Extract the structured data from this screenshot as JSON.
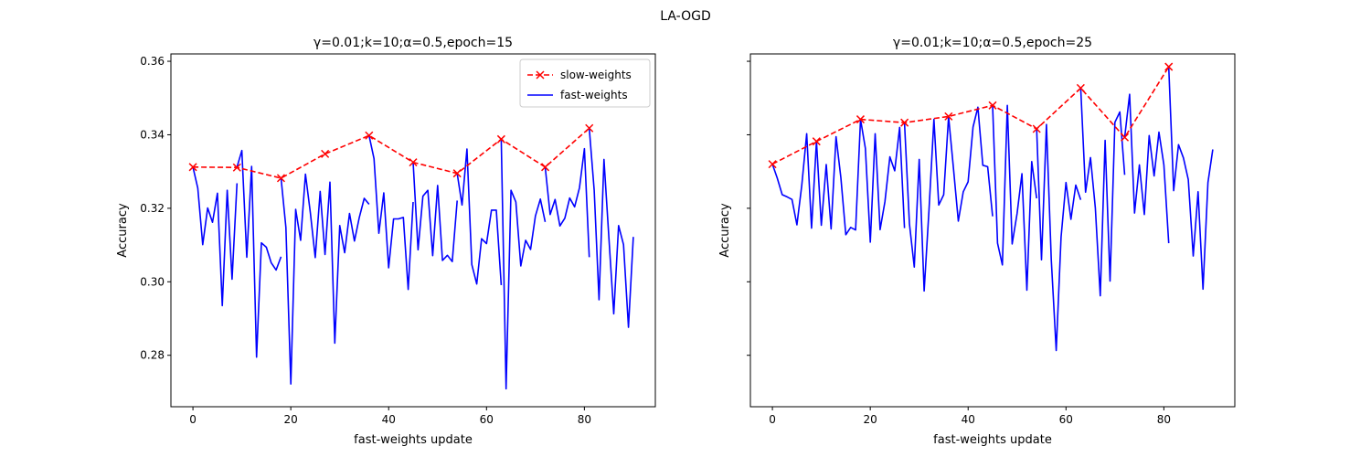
{
  "figure": {
    "suptitle": "LA-OGD"
  },
  "colors": {
    "slow": "#ff0000",
    "fast": "#0000ff",
    "axis": "#000000",
    "legend_border": "#cccccc"
  },
  "chart_data": [
    {
      "type": "line",
      "title": "γ=0.01;k=10;α=0.5,epoch=15",
      "xlabel": "fast-weights update",
      "ylabel": "Accuracy",
      "xlim": [
        -4.5,
        94.5
      ],
      "ylim": [
        0.266,
        0.362
      ],
      "xticks": [
        0,
        20,
        40,
        60,
        80
      ],
      "xtick_labels": [
        "0",
        "20",
        "40",
        "60",
        "80"
      ],
      "yticks": [
        0.28,
        0.3,
        0.32,
        0.34,
        0.36
      ],
      "ytick_labels": [
        "0.28",
        "0.30",
        "0.32",
        "0.34",
        "0.36"
      ],
      "legend": {
        "position": "upper-right",
        "entries": [
          "slow-weights",
          "fast-weights"
        ]
      },
      "series": [
        {
          "name": "slow-weights",
          "style": "dashed-x",
          "x": [
            0,
            9,
            18,
            27,
            36,
            45,
            54,
            63,
            72,
            81
          ],
          "y": [
            0.3312,
            0.3311,
            0.3282,
            0.3348,
            0.3398,
            0.3325,
            0.3295,
            0.3388,
            0.3312,
            0.3418
          ]
        },
        {
          "name": "fast-weights",
          "style": "solid",
          "segments": [
            {
              "x": [
                0,
                1,
                2,
                3,
                4,
                5,
                6,
                7,
                8,
                9
              ],
              "y": [
                0.3312,
                0.3255,
                0.3101,
                0.3201,
                0.3162,
                0.3241,
                0.2935,
                0.3249,
                0.3007,
                0.3268
              ]
            },
            {
              "x": [
                9,
                10,
                11,
                12,
                13,
                14,
                15,
                16,
                17,
                18
              ],
              "y": [
                0.3312,
                0.3357,
                0.3067,
                0.3314,
                0.2795,
                0.3106,
                0.3094,
                0.3052,
                0.3032,
                0.3068
              ]
            },
            {
              "x": [
                18,
                19,
                20,
                21,
                22,
                23,
                24,
                25,
                26,
                27,
                28,
                29,
                30,
                31,
                32,
                33,
                34,
                35,
                36
              ],
              "y": [
                0.3282,
                0.3148,
                0.2722,
                0.3197,
                0.3113,
                0.3293,
                0.3187,
                0.3066,
                0.3246,
                0.3074,
                0.3271,
                0.2833,
                0.3153,
                0.3079,
                0.3186,
                0.3111,
                0.3175,
                0.3227,
                0.3211
              ]
            },
            {
              "x": [
                36,
                37,
                38,
                39,
                40,
                41,
                42,
                43,
                44,
                45
              ],
              "y": [
                0.3398,
                0.3335,
                0.3132,
                0.3242,
                0.3038,
                0.3171,
                0.3171,
                0.3175,
                0.2979,
                0.3217
              ]
            },
            {
              "x": [
                45,
                46,
                47,
                48,
                49,
                50,
                51,
                52,
                53,
                54
              ],
              "y": [
                0.3325,
                0.3087,
                0.3233,
                0.3249,
                0.3071,
                0.3262,
                0.3058,
                0.3072,
                0.3055,
                0.3221
              ]
            },
            {
              "x": [
                54,
                55,
                56,
                57,
                58,
                59,
                60,
                61,
                62,
                63
              ],
              "y": [
                0.3295,
                0.3209,
                0.3361,
                0.3047,
                0.2994,
                0.3117,
                0.3104,
                0.3195,
                0.3195,
                0.2991
              ]
            },
            {
              "x": [
                63,
                64,
                65,
                66,
                67,
                68,
                69,
                70,
                71,
                72
              ],
              "y": [
                0.3388,
                0.2709,
                0.3249,
                0.3217,
                0.3043,
                0.3113,
                0.3088,
                0.3179,
                0.3225,
                0.3163
              ]
            },
            {
              "x": [
                72,
                73,
                74,
                75,
                76,
                77,
                78,
                79,
                80,
                81
              ],
              "y": [
                0.3312,
                0.3183,
                0.3224,
                0.3152,
                0.3173,
                0.3228,
                0.3204,
                0.3256,
                0.3362,
                0.3067
              ]
            },
            {
              "x": [
                81,
                82,
                83,
                84,
                85,
                86,
                87,
                88,
                89,
                90
              ],
              "y": [
                0.3418,
                0.3249,
                0.2951,
                0.3333,
                0.3123,
                0.2913,
                0.3153,
                0.3101,
                0.2876,
                0.3122
              ]
            }
          ]
        }
      ]
    },
    {
      "type": "line",
      "title": "γ=0.01;k=10;α=0.5,epoch=25",
      "xlabel": "fast-weights update",
      "ylabel": "Accuracy",
      "xlim": [
        -4.5,
        94.5
      ],
      "ylim": [
        0.266,
        0.362
      ],
      "xticks": [
        0,
        20,
        40,
        60,
        80
      ],
      "xtick_labels": [
        "0",
        "20",
        "40",
        "60",
        "80"
      ],
      "yticks": [
        0.28,
        0.3,
        0.32,
        0.34,
        0.36
      ],
      "ytick_labels": [
        "",
        "",
        "",
        "",
        ""
      ],
      "legend": null,
      "series": [
        {
          "name": "slow-weights",
          "style": "dashed-x",
          "x": [
            0,
            9,
            18,
            27,
            36,
            45,
            54,
            63,
            72,
            81
          ],
          "y": [
            0.332,
            0.3382,
            0.3442,
            0.3433,
            0.345,
            0.348,
            0.3416,
            0.3527,
            0.3393,
            0.3585
          ]
        },
        {
          "name": "fast-weights",
          "style": "solid",
          "segments": [
            {
              "x": [
                0,
                1,
                2,
                3,
                4,
                5,
                6,
                7,
                8,
                9
              ],
              "y": [
                0.332,
                0.3282,
                0.3237,
                0.3231,
                0.3224,
                0.3155,
                0.3262,
                0.3403,
                0.3146,
                0.3382
              ]
            },
            {
              "x": [
                9,
                10,
                11,
                12,
                13,
                14,
                15,
                16,
                17,
                18
              ],
              "y": [
                0.3382,
                0.3154,
                0.3319,
                0.3144,
                0.3395,
                0.3283,
                0.3128,
                0.3148,
                0.3141,
                0.3442
              ]
            },
            {
              "x": [
                18,
                19,
                20,
                21,
                22,
                23,
                24,
                25,
                26,
                27
              ],
              "y": [
                0.3442,
                0.3363,
                0.3108,
                0.3403,
                0.3142,
                0.3218,
                0.334,
                0.3302,
                0.342,
                0.3146
              ]
            },
            {
              "x": [
                27,
                28,
                29,
                30,
                31,
                32,
                33,
                34,
                35,
                36
              ],
              "y": [
                0.3433,
                0.3158,
                0.304,
                0.3333,
                0.2975,
                0.3195,
                0.3442,
                0.3209,
                0.3237,
                0.3448
              ]
            },
            {
              "x": [
                36,
                37,
                38,
                39,
                40,
                41,
                42,
                43,
                44,
                45
              ],
              "y": [
                0.345,
                0.3308,
                0.3165,
                0.3245,
                0.3272,
                0.3421,
                0.3475,
                0.3317,
                0.3313,
                0.3178
              ]
            },
            {
              "x": [
                45,
                46,
                47,
                48,
                49,
                50,
                51,
                52,
                53,
                54
              ],
              "y": [
                0.348,
                0.3105,
                0.3046,
                0.348,
                0.3103,
                0.3186,
                0.3294,
                0.2977,
                0.3327,
                0.3227
              ]
            },
            {
              "x": [
                54,
                55,
                56,
                57,
                58,
                59,
                60,
                61,
                62,
                63
              ],
              "y": [
                0.3416,
                0.306,
                0.3428,
                0.306,
                0.2813,
                0.3121,
                0.327,
                0.317,
                0.3263,
                0.3223
              ]
            },
            {
              "x": [
                63,
                64,
                65,
                66,
                67,
                68,
                69,
                70,
                71,
                72
              ],
              "y": [
                0.3527,
                0.3244,
                0.3338,
                0.3201,
                0.2962,
                0.3385,
                0.3002,
                0.3434,
                0.3462,
                0.3291
              ]
            },
            {
              "x": [
                72,
                73,
                74,
                75,
                76,
                77,
                78,
                79,
                80,
                81
              ],
              "y": [
                0.3393,
                0.351,
                0.3187,
                0.3318,
                0.3183,
                0.3398,
                0.3288,
                0.3407,
                0.3318,
                0.3105
              ]
            },
            {
              "x": [
                81,
                82,
                83,
                84,
                85,
                86,
                87,
                88,
                89,
                90
              ],
              "y": [
                0.3585,
                0.3248,
                0.3373,
                0.3337,
                0.3278,
                0.307,
                0.3245,
                0.298,
                0.327,
                0.336
              ]
            }
          ]
        }
      ]
    }
  ]
}
